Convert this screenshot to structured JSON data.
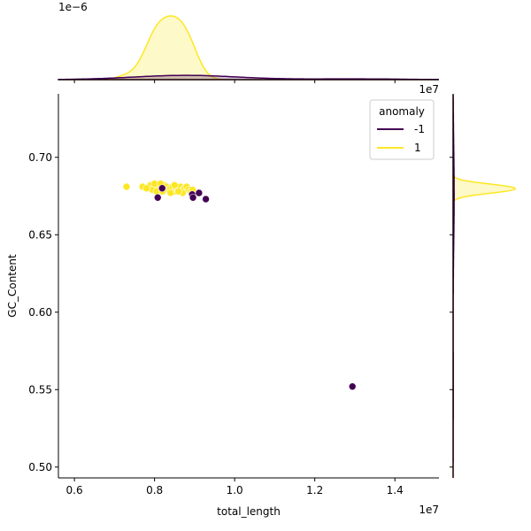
{
  "chart_data": {
    "type": "scatter",
    "xlabel": "total_length",
    "ylabel": "GC_Content",
    "x_offset_label": "1e7",
    "y_offset_label_top": "1e−6",
    "x_offset_label_marginal": "1e7",
    "xlim": [
      0.56,
      1.51
    ],
    "ylim": [
      0.493,
      0.741
    ],
    "x_ticks": [
      0.6,
      0.8,
      1.0,
      1.2,
      1.4
    ],
    "x_tick_labels": [
      "0.6",
      "0.8",
      "1.0",
      "1.2",
      "1.4"
    ],
    "y_ticks": [
      0.5,
      0.55,
      0.6,
      0.65,
      0.7
    ],
    "y_tick_labels": [
      "0.50",
      "0.55",
      "0.60",
      "0.65",
      "0.70"
    ],
    "legend": {
      "title": "anomaly",
      "placement": "top-right",
      "entries": [
        {
          "label": "-1",
          "color": "#440154"
        },
        {
          "label": "1",
          "color": "#fde725"
        }
      ]
    },
    "series": [
      {
        "name": "1",
        "color": "#fde725",
        "points": [
          [
            0.73,
            0.681
          ],
          [
            0.77,
            0.681
          ],
          [
            0.785,
            0.68
          ],
          [
            0.79,
            0.682
          ],
          [
            0.8,
            0.681
          ],
          [
            0.81,
            0.682
          ],
          [
            0.815,
            0.679
          ],
          [
            0.82,
            0.68
          ],
          [
            0.825,
            0.682
          ],
          [
            0.83,
            0.681
          ],
          [
            0.835,
            0.679
          ],
          [
            0.84,
            0.68
          ],
          [
            0.845,
            0.681
          ],
          [
            0.85,
            0.678
          ],
          [
            0.855,
            0.68
          ],
          [
            0.86,
            0.679
          ],
          [
            0.865,
            0.681
          ],
          [
            0.87,
            0.679
          ],
          [
            0.875,
            0.68
          ],
          [
            0.88,
            0.681
          ],
          [
            0.885,
            0.679
          ],
          [
            0.89,
            0.678
          ],
          [
            0.895,
            0.677
          ],
          [
            0.87,
            0.677
          ],
          [
            0.86,
            0.678
          ],
          [
            0.795,
            0.679
          ],
          [
            0.805,
            0.678
          ],
          [
            0.82,
            0.678
          ],
          [
            0.84,
            0.677
          ],
          [
            0.9,
            0.676
          ],
          [
            0.895,
            0.679
          ],
          [
            0.8,
            0.683
          ],
          [
            0.815,
            0.683
          ],
          [
            0.85,
            0.682
          ],
          [
            0.78,
            0.68
          ]
        ]
      },
      {
        "name": "-1",
        "color": "#440154",
        "points": [
          [
            0.808,
            0.674
          ],
          [
            0.819,
            0.68
          ],
          [
            0.894,
            0.676
          ],
          [
            0.896,
            0.674
          ],
          [
            0.911,
            0.677
          ],
          [
            0.928,
            0.673
          ],
          [
            1.294,
            0.552
          ]
        ]
      }
    ],
    "marginal_x": {
      "type": "kde",
      "peak_x": 0.83,
      "y_scale_label": "1e−6"
    },
    "marginal_y": {
      "type": "kde",
      "peak_y": 0.68
    }
  }
}
